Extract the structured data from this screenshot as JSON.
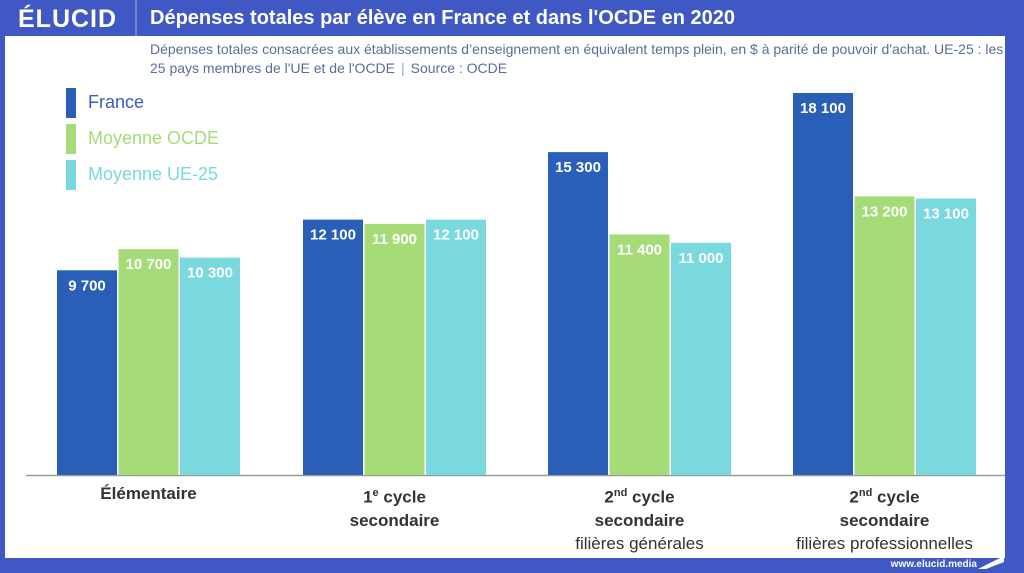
{
  "header": {
    "logo": "ÉLUCID",
    "title": "Dépenses totales par élève en France et dans l'OCDE en 2020"
  },
  "subtitle": {
    "text": "Dépenses totales consacrées aux établissements d’enseignement en équivalent temps plein, en $ à parité de pouvoir d'achat. UE-25 : les 25 pays membres de l'UE et de l'OCDE",
    "separator": "|",
    "source": "Source : OCDE"
  },
  "footer": {
    "url": "www.elucid.media",
    "flag_icon": "elucid-flag-icon"
  },
  "colors": {
    "France": "#2a5fb8",
    "Moyenne OCDE": "#a6dc78",
    "Moyenne UE-25": "#7ad9df",
    "header": "#3f58c4"
  },
  "chart_data": {
    "type": "bar",
    "title": "Dépenses totales par élève en France et dans l'OCDE en 2020",
    "xlabel": "",
    "ylabel": "",
    "ylim": [
      0,
      18500
    ],
    "grid": false,
    "legend_position": "top-left",
    "categories": [
      {
        "line1": "Élémentaire",
        "sup": "",
        "line1_rest": "",
        "line2": "",
        "line3": ""
      },
      {
        "line1": "1",
        "sup": "e",
        "line1_rest": " cycle",
        "line2": "secondaire",
        "line3": ""
      },
      {
        "line1": "2",
        "sup": "nd",
        "line1_rest": " cycle",
        "line2": "secondaire",
        "line3": "filières générales"
      },
      {
        "line1": "2",
        "sup": "nd",
        "line1_rest": " cycle",
        "line2": "secondaire",
        "line3": "filières professionnelles"
      }
    ],
    "series": [
      {
        "name": "France",
        "values": [
          9700,
          12100,
          15300,
          18100
        ],
        "labels": [
          "9 700",
          "12 100",
          "15 300",
          "18 100"
        ]
      },
      {
        "name": "Moyenne OCDE",
        "values": [
          10700,
          11900,
          11400,
          13200
        ],
        "labels": [
          "10 700",
          "11 900",
          "11 400",
          "13 200"
        ]
      },
      {
        "name": "Moyenne UE-25",
        "values": [
          10300,
          12100,
          11000,
          13100
        ],
        "labels": [
          "10 300",
          "12 100",
          "11 000",
          "13 100"
        ]
      }
    ]
  }
}
